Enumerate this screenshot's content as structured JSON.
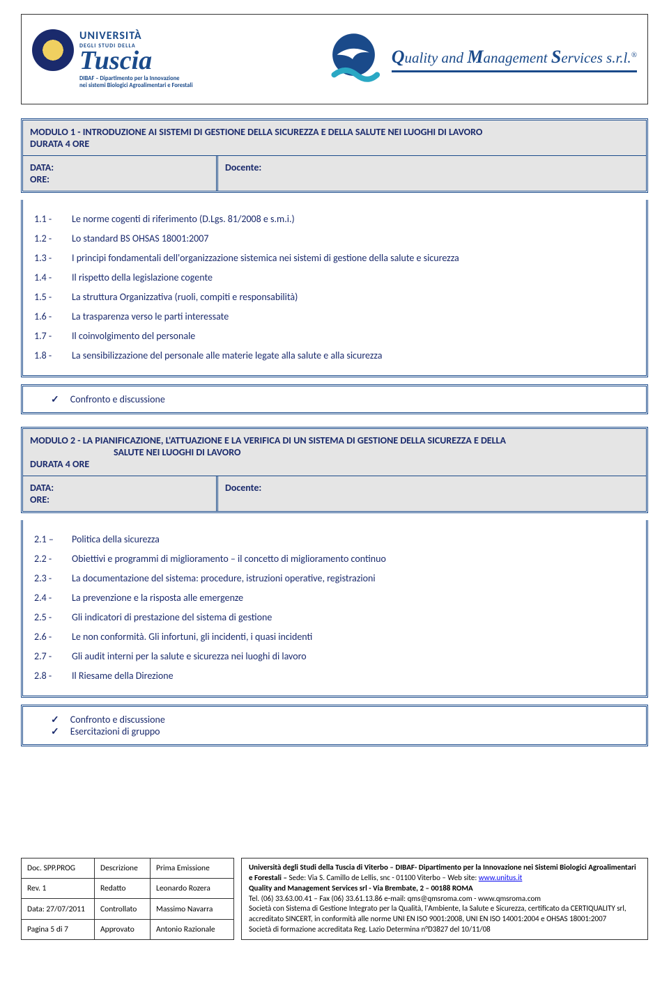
{
  "header": {
    "uni_line1": "UNIVERSITÀ",
    "uni_line2": "DEGLI STUDI DELLA",
    "uni_line3": "Tuscia",
    "dept_line1": "DIBAF – Dipartimento per la Innovazione",
    "dept_line2": "nei sistemi Biologici Agroalimentari e Forestali",
    "qms_text_html": "Quality and Management Services s.r.l."
  },
  "module1": {
    "title": "MODULO 1  -  INTRODUZIONE AI SISTEMI DI GESTIONE DELLA SICUREZZA E DELLA SALUTE NEI LUOGHI DI LAVORO",
    "duration": "DURATA 4 ORE",
    "data_lbl": "DATA:",
    "ore_lbl": "ORE:",
    "docente_lbl": "Docente:",
    "items": [
      {
        "n": "1.1 -",
        "t": "Le norme cogenti di riferimento (D.Lgs. 81/2008 e s.m.i.)"
      },
      {
        "n": "1.2 -",
        "t": "Lo standard BS OHSAS 18001:2007"
      },
      {
        "n": "1.3 -",
        "t": "I principi fondamentali dell'organizzazione sistemica nei sistemi di gestione della salute e sicurezza"
      },
      {
        "n": "1.4 -",
        "t": "Il rispetto della legislazione cogente"
      },
      {
        "n": "1.5 -",
        "t": "La struttura Organizzativa (ruoli, compiti e responsabilità)"
      },
      {
        "n": "1.6 -",
        "t": "La trasparenza verso le parti interessate"
      },
      {
        "n": "1.7 -",
        "t": "Il coinvolgimento del personale"
      },
      {
        "n": "1.8 -",
        "t": "La sensibilizzazione del personale alle materie legate alla salute e alla sicurezza"
      }
    ],
    "discuss": [
      "Confronto e discussione"
    ]
  },
  "module2": {
    "title_l1": "MODULO 2  -  LA PIANIFICAZIONE, L'ATTUAZIONE E LA VERIFICA DI UN SISTEMA DI GESTIONE DELLA SICUREZZA E DELLA",
    "title_l2": "SALUTE NEI LUOGHI DI LAVORO",
    "duration": "DURATA 4 ORE",
    "data_lbl": "DATA:",
    "ore_lbl": "ORE:",
    "docente_lbl": "Docente:",
    "items": [
      {
        "n": "2.1 –",
        "t": "Politica della sicurezza"
      },
      {
        "n": "2.2 -",
        "t": "Obiettivi e programmi di miglioramento – il concetto di miglioramento continuo"
      },
      {
        "n": "2.3 -",
        "t": "La documentazione del sistema: procedure, istruzioni operative, registrazioni"
      },
      {
        "n": "2.4 -",
        "t": "La prevenzione e la risposta alle emergenze"
      },
      {
        "n": "2.5 -",
        "t": "Gli indicatori di prestazione del sistema di gestione"
      },
      {
        "n": "2.6 -",
        "t": "Le non conformità. Gli infortuni, gli incidenti, i quasi incidenti"
      },
      {
        "n": "2.7 -",
        "t": "Gli audit interni per la salute e sicurezza nei luoghi di lavoro"
      },
      {
        "n": "2.8 -",
        "t": "Il Riesame della Direzione"
      }
    ],
    "discuss": [
      "Confronto e discussione",
      "Esercitazioni di gruppo"
    ]
  },
  "footer": {
    "table": [
      [
        "Doc. SPP.PROG",
        "Descrizione",
        "Prima Emissione"
      ],
      [
        "Rev. 1",
        "Redatto",
        "Leonardo Rozera"
      ],
      [
        "Data: 27/07/2011",
        "Controllato",
        "Massimo Navarra"
      ],
      [
        "Pagina 5 di 7",
        "Approvato",
        "Antonio Razionale"
      ]
    ],
    "r1": "Università degli Studi della Tuscia di Viterbo – DIBAF- Dipartimento per la Innovazione nei Sistemi Biologici Agroalimentari e Forestali –",
    "r1b": " Sede: Via S. Camillo de Lellis, snc - 01100 Viterbo –  Web site: ",
    "r1link": "www.unitus.it",
    "r2": "Quality and Management Services srl - Via Brembate, 2 – 00188 ROMA",
    "r3a": "Tel. (06) 33.63.00.41 – Fax (06) 33.61.13.86 e-mail: qms@qmsroma.com - www.qmsroma.com",
    "r3b": "Società con Sistema di Gestione Integrato per la Qualità, l'Ambiente, la Salute e Sicurezza, certificato da CERTIQUALITY srl, accreditato SINCERT, in conformità alle norme UNI EN ISO 9001:2008, UNI EN ISO 14001:2004 e OHSAS 18001:2007",
    "r3c": "Società di formazione accreditata Reg. Lazio Determina n°D3827 del 10/11/08"
  },
  "colors": {
    "primary": "#1a4a8a",
    "grey": "#e5e5e5"
  }
}
